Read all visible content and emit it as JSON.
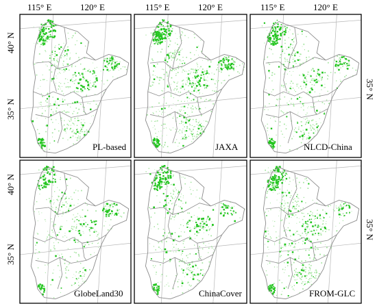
{
  "figure": {
    "longitude_labels": [
      "115° E",
      "120° E",
      "115° E",
      "120° E",
      "115° E",
      "120° E"
    ],
    "latitude_labels_left": [
      "40° N",
      "35° N",
      "40° N",
      "35° N"
    ],
    "latitude_labels_right": [
      "35° N",
      "35° N"
    ],
    "panels": [
      {
        "name": "PL-based",
        "green_density": 0.55
      },
      {
        "name": "JAXA",
        "green_density": 0.8
      },
      {
        "name": "NLCD-China",
        "green_density": 0.45
      },
      {
        "name": "GlobeLand30",
        "green_density": 0.25
      },
      {
        "name": "ChinaCover",
        "green_density": 0.4
      },
      {
        "name": "FROM-GLC",
        "green_density": 0.6
      }
    ],
    "colors": {
      "vegetation_bright": "#22c51e",
      "vegetation_light": "#9fe39a",
      "boundary": "#8a8a8a",
      "graticule": "#b5b5b5",
      "frame": "#000000"
    }
  }
}
